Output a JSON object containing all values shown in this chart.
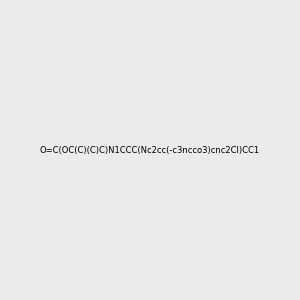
{
  "smiles": "O=C(OC(C)(C)C)N1CCC(Nc2cc(-c3ncco3)cnc2Cl)CC1",
  "image_size": 300,
  "background_color": "#ebebeb",
  "title": ""
}
